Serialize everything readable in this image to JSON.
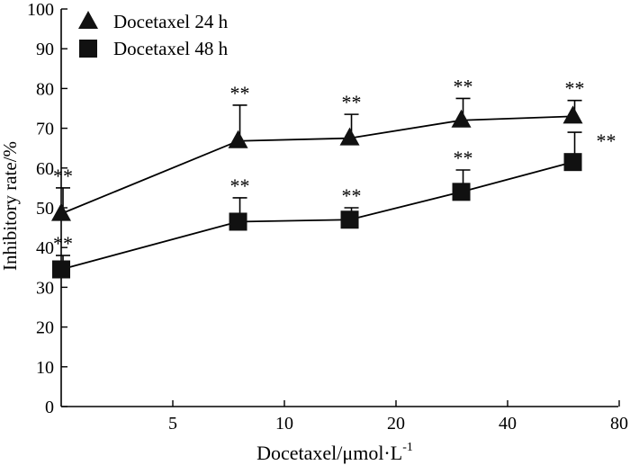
{
  "chart_data": {
    "type": "line",
    "title": "",
    "xlabel": "Docetaxel/μmol·L",
    "xlabel_superscript": "-1",
    "ylabel": "Inhibitory rate/%",
    "categories": [
      "2.5",
      "7.5",
      "15",
      "30",
      "60"
    ],
    "x_tick_labels": [
      "5",
      "10",
      "20",
      "40",
      "80"
    ],
    "y_ticks": [
      0,
      10,
      20,
      30,
      40,
      50,
      60,
      70,
      80,
      90,
      100
    ],
    "ylim": [
      0,
      100
    ],
    "legend_position": "top-left",
    "significance_label": "**",
    "series": [
      {
        "name": "Docetaxel 24 h",
        "marker": "triangle",
        "values": [
          48.5,
          66.8,
          67.5,
          72.0,
          73.0
        ],
        "errors": [
          6.5,
          9.0,
          6.0,
          5.5,
          4.0
        ]
      },
      {
        "name": "Docetaxel 48 h",
        "marker": "square",
        "values": [
          34.5,
          46.5,
          47.0,
          54.0,
          61.5
        ],
        "errors": [
          3.5,
          6.0,
          3.0,
          5.5,
          7.5
        ]
      }
    ]
  }
}
